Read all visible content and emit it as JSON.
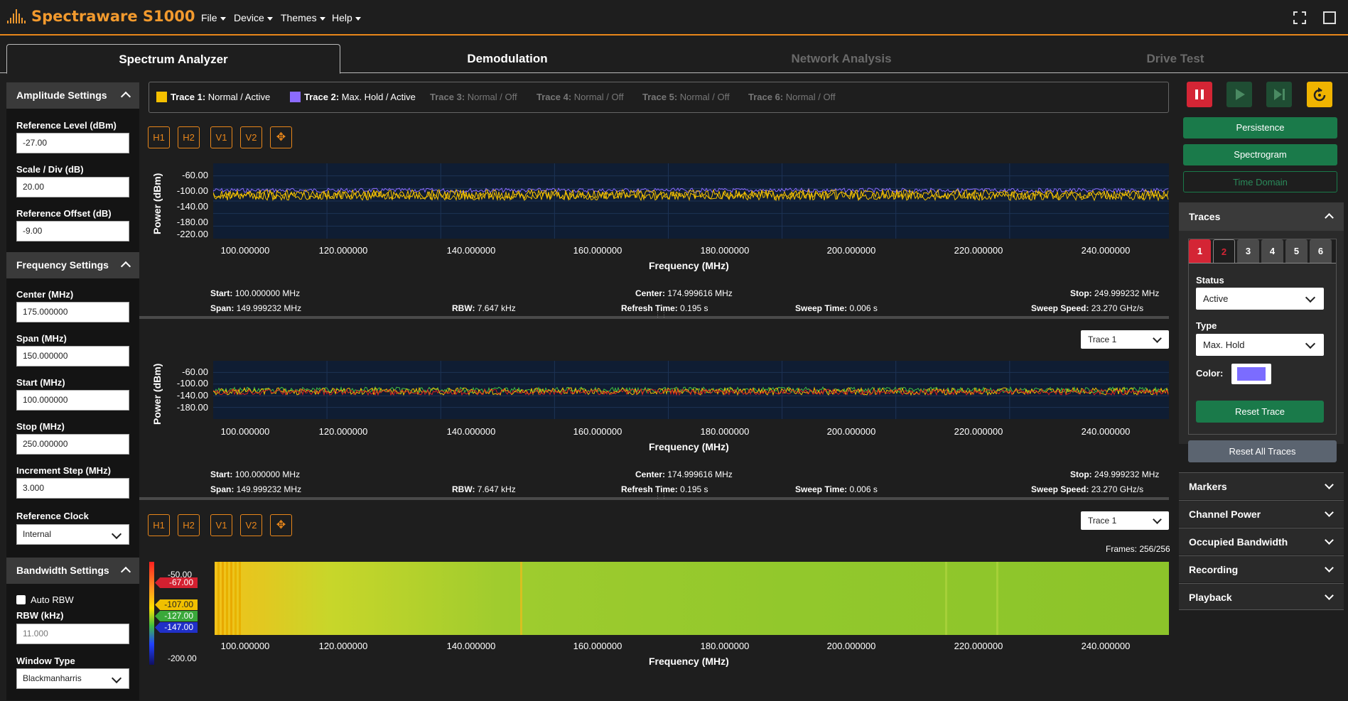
{
  "app": {
    "title": "Spectraware S1000"
  },
  "menu": [
    "File",
    "Device",
    "Themes",
    "Help"
  ],
  "tabs": [
    {
      "label": "Spectrum Analyzer",
      "active": true
    },
    {
      "label": "Demodulation",
      "active": false
    },
    {
      "label": "Network Analysis",
      "active": false
    },
    {
      "label": "Drive Test",
      "active": false
    }
  ],
  "amplitude": {
    "title": "Amplitude Settings",
    "ref_level_label": "Reference Level (dBm)",
    "ref_level": "-27.00",
    "scale_label": "Scale / Div (dB)",
    "scale": "20.00",
    "offset_label": "Reference Offset (dB)",
    "offset": "-9.00"
  },
  "frequency": {
    "title": "Frequency Settings",
    "center_label": "Center (MHz)",
    "center": "175.000000",
    "span_label": "Span (MHz)",
    "span": "150.000000",
    "start_label": "Start (MHz)",
    "start": "100.000000",
    "stop_label": "Stop (MHz)",
    "stop": "250.000000",
    "step_label": "Increment Step (MHz)",
    "step": "3.000",
    "clock_label": "Reference Clock",
    "clock": "Internal"
  },
  "bandwidth": {
    "title": "Bandwidth Settings",
    "auto_rbw_label": "Auto RBW",
    "rbw_label": "RBW (kHz)",
    "rbw": "11.000",
    "window_label": "Window Type",
    "window": "Blackmanharris"
  },
  "traces_bar": [
    {
      "name": "Trace 1:",
      "mode": "Normal / Active",
      "color": "#f5c000",
      "active": true
    },
    {
      "name": "Trace 2:",
      "mode": "Max. Hold / Active",
      "color": "#8c6bff",
      "active": true
    },
    {
      "name": "Trace 3:",
      "mode": "Normal / Off",
      "active": false
    },
    {
      "name": "Trace 4:",
      "mode": "Normal / Off",
      "active": false
    },
    {
      "name": "Trace 5:",
      "mode": "Normal / Off",
      "active": false
    },
    {
      "name": "Trace 6:",
      "mode": "Normal / Off",
      "active": false
    }
  ],
  "marker_buttons": [
    "H1",
    "H2",
    "V1",
    "V2",
    "move-icon"
  ],
  "plot1": {
    "ylabel": "Power (dBm)",
    "xlabel": "Frequency (MHz)",
    "yticks": [
      "-60.00",
      "-100.00",
      "-140.00",
      "-180.00",
      "-220.00"
    ],
    "xticks": [
      "100.000000",
      "120.000000",
      "140.000000",
      "160.000000",
      "180.000000",
      "200.000000",
      "220.000000",
      "240.000000"
    ]
  },
  "plot2": {
    "ylabel": "Power (dBm)",
    "xlabel": "Frequency (MHz)",
    "yticks": [
      "-60.00",
      "-100.00",
      "-140.00",
      "-180.00"
    ],
    "trace_select": "Trace 1"
  },
  "plot3": {
    "xlabel": "Frequency (MHz)",
    "trace_select": "Trace 1",
    "frames": "Frames: 256/256",
    "scale_ticks": [
      "-50.00",
      "-200.00"
    ],
    "markers": [
      "-67.00",
      "-107.00",
      "-127.00",
      "-147.00"
    ]
  },
  "info": {
    "start_l": "Start:",
    "start_v": "100.000000 MHz",
    "span_l": "Span:",
    "span_v": "149.999232 MHz",
    "rbw_l": "RBW:",
    "rbw_v": "7.647 kHz",
    "center_l": "Center:",
    "center_v": "174.999616 MHz",
    "refresh_l": "Refresh Time:",
    "refresh_v": "0.195 s",
    "sweep_l": "Sweep Time:",
    "sweep_v": "0.006 s",
    "stop_l": "Stop:",
    "stop_v": "249.999232 MHz",
    "speed_l": "Sweep Speed:",
    "speed_v": "23.270 GHz/s"
  },
  "right": {
    "persistence": "Persistence",
    "spectrogram": "Spectrogram",
    "time_domain": "Time Domain",
    "traces_title": "Traces",
    "trace_tabs": [
      "1",
      "2",
      "3",
      "4",
      "5",
      "6"
    ],
    "status_label": "Status",
    "status": "Active",
    "type_label": "Type",
    "type": "Max. Hold",
    "color_label": "Color:",
    "color": "#7b6cff",
    "reset_trace": "Reset Trace",
    "reset_all": "Reset All Traces",
    "accordions": [
      "Markers",
      "Channel Power",
      "Occupied Bandwidth",
      "Recording",
      "Playback"
    ]
  }
}
